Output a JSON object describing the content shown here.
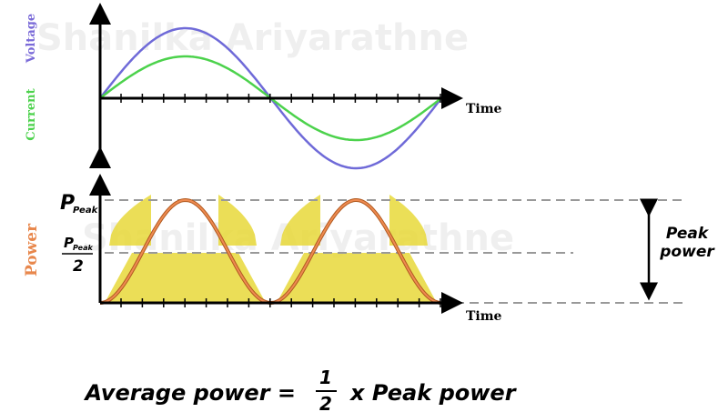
{
  "watermark": "Shanilka Ariyarathne",
  "top_graph": {
    "y_label_voltage": "Voltage",
    "y_label_current": "Current",
    "x_label": "Time"
  },
  "bottom_graph": {
    "y_label": "Power",
    "peak_symbol": "P",
    "peak_subscript": "Peak",
    "half_denominator": "2",
    "x_label": "Time",
    "peak_power_label": [
      "Peak",
      "power"
    ]
  },
  "formula": {
    "left": "Average power =",
    "numerator": "1",
    "denominator": "2",
    "right": "x Peak power"
  }
}
